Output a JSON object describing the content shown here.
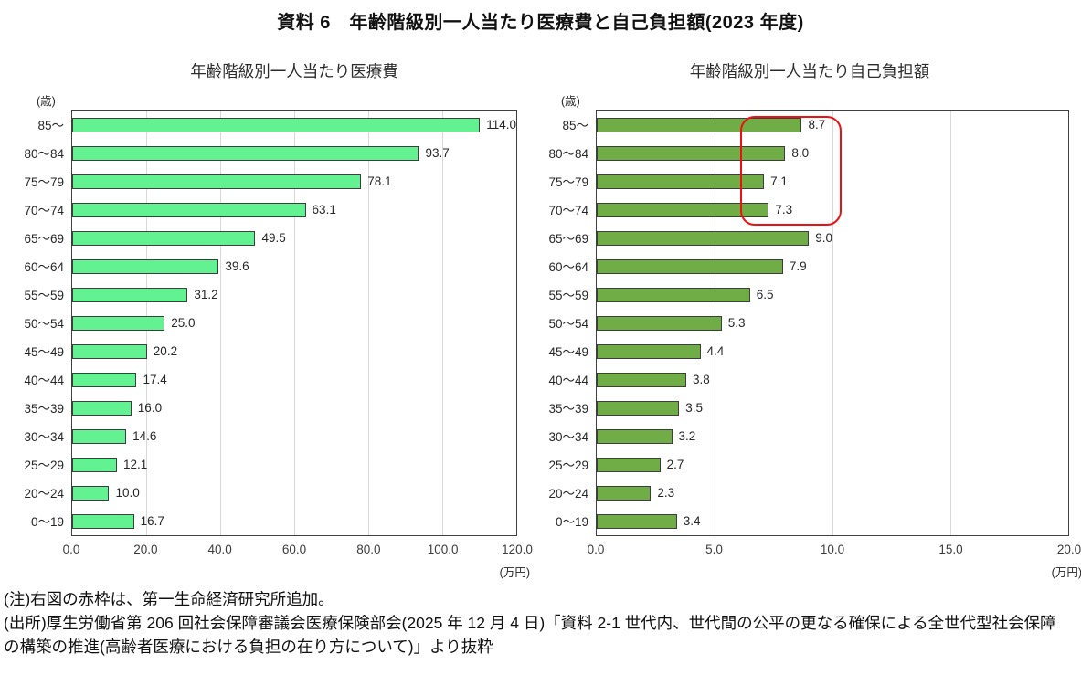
{
  "header": {
    "title": "資料 6　年齢階級別一人当たり医療費と自己負担額(2023 年度)"
  },
  "chart_data": [
    {
      "type": "bar",
      "orientation": "horizontal",
      "title": "年齢階級別一人当たり医療費",
      "axis_unit_y": "(歳)",
      "axis_unit_x": "(万円)",
      "categories": [
        "85〜",
        "80〜84",
        "75〜79",
        "70〜74",
        "65〜69",
        "60〜64",
        "55〜59",
        "50〜54",
        "45〜49",
        "40〜44",
        "35〜39",
        "30〜34",
        "25〜29",
        "20〜24",
        "0〜19"
      ],
      "values": [
        114.0,
        93.7,
        78.1,
        63.1,
        49.5,
        39.6,
        31.2,
        25.0,
        20.2,
        17.4,
        16.0,
        14.6,
        12.1,
        10.0,
        16.7
      ],
      "xlim": [
        0,
        120
      ],
      "x_ticks": [
        "0.0",
        "20.0",
        "40.0",
        "60.0",
        "80.0",
        "100.0",
        "120.0"
      ],
      "grid": true,
      "legend": "none",
      "bar_color": "#63f292",
      "bar_border_color": "#3e3e3e"
    },
    {
      "type": "bar",
      "orientation": "horizontal",
      "title": "年齢階級別一人当たり自己負担額",
      "axis_unit_y": "(歳)",
      "axis_unit_x": "(万円)",
      "categories": [
        "85〜",
        "80〜84",
        "75〜79",
        "70〜74",
        "65〜69",
        "60〜64",
        "55〜59",
        "50〜54",
        "45〜49",
        "40〜44",
        "35〜39",
        "30〜34",
        "25〜29",
        "20〜24",
        "0〜19"
      ],
      "values": [
        8.7,
        8.0,
        7.1,
        7.3,
        9.0,
        7.9,
        6.5,
        5.3,
        4.4,
        3.8,
        3.5,
        3.2,
        2.7,
        2.3,
        3.4
      ],
      "xlim": [
        0,
        20
      ],
      "x_ticks": [
        "0.0",
        "5.0",
        "10.0",
        "15.0",
        "20.0"
      ],
      "grid": true,
      "legend": "none",
      "bar_color": "#70ad47",
      "bar_border_color": "#3e3e3e",
      "annotation": {
        "type": "red-frame",
        "color": "#ee1111",
        "highlighted_categories": [
          "85〜",
          "80〜84",
          "75〜79",
          "70〜74"
        ]
      }
    }
  ],
  "notes": {
    "note": "(注)右図の赤枠は、第一生命経済研究所追加。",
    "source": "(出所)厚生労働省第 206 回社会保障審議会医療保険部会(2025 年 12 月 4 日)「資料 2-1 世代内、世代間の公平の更なる確保による全世代型社会保障の構築の推進(高齢者医療における負担の在り方について)」より抜粋"
  }
}
